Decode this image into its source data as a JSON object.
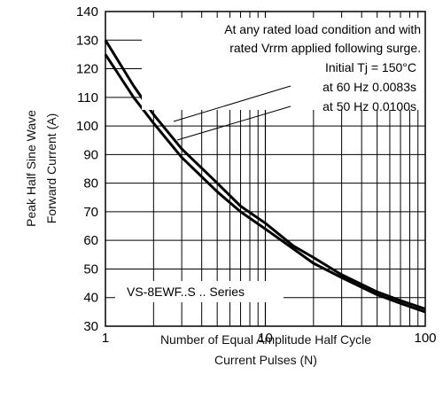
{
  "chart_data": {
    "type": "line",
    "xscale": "log",
    "xlim": [
      1,
      100
    ],
    "ylim": [
      30,
      140
    ],
    "x_ticks": [
      {
        "value": 1,
        "label": "1"
      },
      {
        "value": 10,
        "label": "10"
      },
      {
        "value": 100,
        "label": "100"
      }
    ],
    "y_ticks": [
      30,
      40,
      50,
      60,
      70,
      80,
      90,
      100,
      110,
      120,
      130,
      140
    ],
    "xlabel_lines": [
      "Number of Equal Amplitude Half Cycle",
      "Current Pulses (N)"
    ],
    "ylabel_lines": [
      "Peak Half Sine Wave",
      "Forward Current (A)"
    ],
    "grid": true,
    "series": [
      {
        "label": "at 60 Hz 0.0083s",
        "x": [
          1,
          1.5,
          2,
          3,
          5,
          7,
          10,
          15,
          20,
          30,
          50,
          70,
          100
        ],
        "y": [
          130,
          114,
          104,
          92,
          80,
          72,
          66,
          58,
          54,
          48,
          42,
          39,
          36
        ]
      },
      {
        "label": "at 50 Hz 0.0100s",
        "x": [
          1,
          1.5,
          2,
          3,
          5,
          7,
          10,
          15,
          20,
          30,
          50,
          70,
          100
        ],
        "y": [
          125,
          110,
          101,
          89,
          77,
          70,
          64,
          57,
          52,
          47,
          41,
          38,
          35
        ]
      }
    ],
    "annotations": [
      "At any rated load condition and with",
      "rated Vrrm applied following surge.",
      "Initial Tj = 150°C"
    ],
    "series_note": "VS-8EWF..S .. Series"
  }
}
